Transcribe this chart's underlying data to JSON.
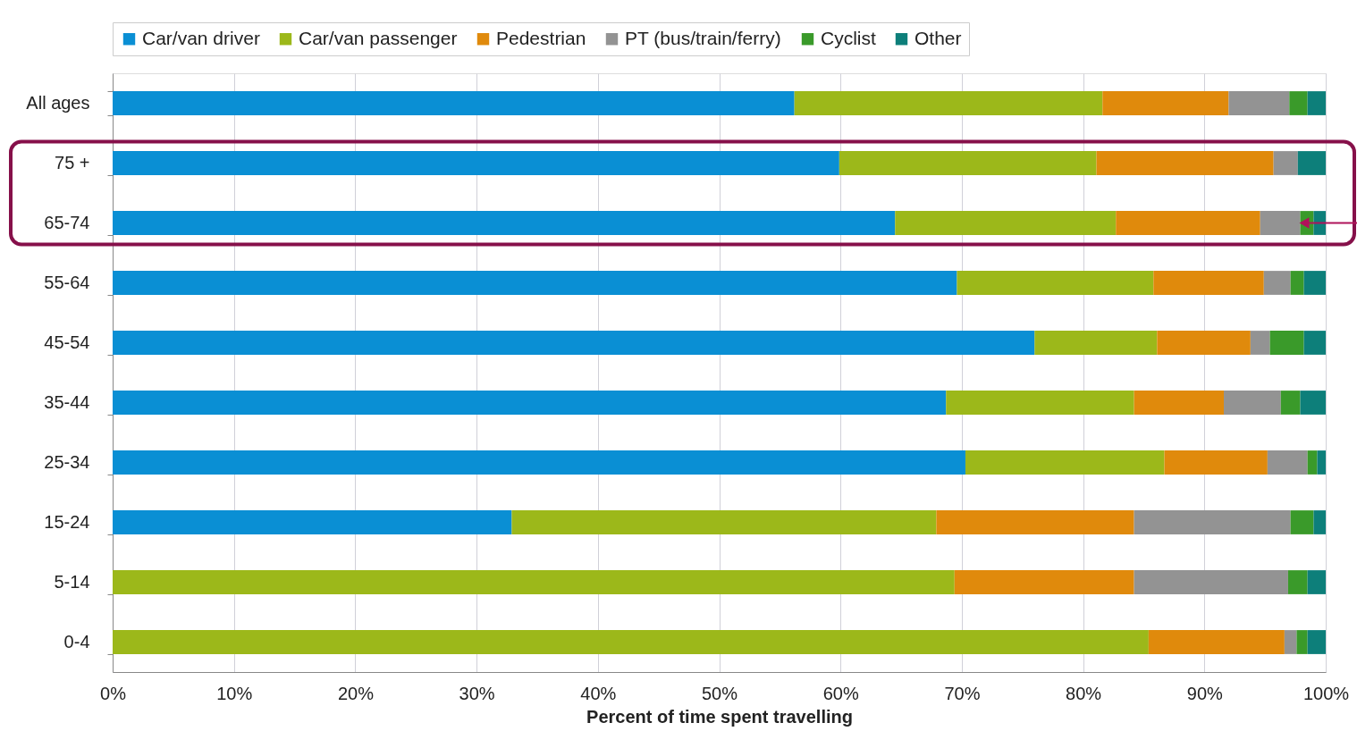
{
  "chart_data": {
    "type": "bar",
    "orientation": "horizontal",
    "stacked": true,
    "xlabel": "Percent of time spent travelling",
    "categories": [
      "All ages",
      "75 +",
      "65-74",
      "55-64",
      "45-54",
      "35-44",
      "25-34",
      "15-24",
      "5-14",
      "0-4"
    ],
    "series": [
      {
        "name": "Car/van driver",
        "color": "#0a8fd4",
        "values": [
          56.2,
          59.9,
          64.5,
          69.6,
          76.0,
          68.7,
          70.3,
          32.9,
          0,
          0
        ]
      },
      {
        "name": "Car/van passenger",
        "color": "#9cb81a",
        "values": [
          25.4,
          21.2,
          18.2,
          16.2,
          10.1,
          15.5,
          16.4,
          35.0,
          69.4,
          85.4
        ]
      },
      {
        "name": "Pedestrian",
        "color": "#e08a0c",
        "values": [
          10.4,
          14.6,
          11.9,
          9.1,
          7.7,
          7.4,
          8.5,
          16.3,
          14.8,
          11.2
        ]
      },
      {
        "name": "PT (bus/train/ferry)",
        "color": "#939393",
        "values": [
          5.0,
          2.0,
          3.3,
          2.2,
          1.6,
          4.7,
          3.3,
          12.9,
          12.7,
          1.0
        ]
      },
      {
        "name": "Cyclist",
        "color": "#3a9a2a",
        "values": [
          1.5,
          0,
          1.1,
          1.1,
          2.8,
          1.6,
          0.8,
          1.9,
          1.6,
          0.9
        ]
      },
      {
        "name": "Other",
        "color": "#0d7f7a",
        "values": [
          1.5,
          2.3,
          1.0,
          1.8,
          1.8,
          2.1,
          0.7,
          1.0,
          1.5,
          1.5
        ]
      }
    ],
    "xlim": [
      0,
      100
    ],
    "xticks": [
      {
        "value": 0,
        "label": "0%"
      },
      {
        "value": 10,
        "label": "10%"
      },
      {
        "value": 20,
        "label": "20%"
      },
      {
        "value": 30,
        "label": "30%"
      },
      {
        "value": 40,
        "label": "40%"
      },
      {
        "value": 50,
        "label": "50%"
      },
      {
        "value": 60,
        "label": "60%"
      },
      {
        "value": 70,
        "label": "70%"
      },
      {
        "value": 80,
        "label": "80%"
      },
      {
        "value": 90,
        "label": "90%"
      },
      {
        "value": 100,
        "label": "100%"
      }
    ],
    "grid": "x",
    "legend": "top"
  }
}
